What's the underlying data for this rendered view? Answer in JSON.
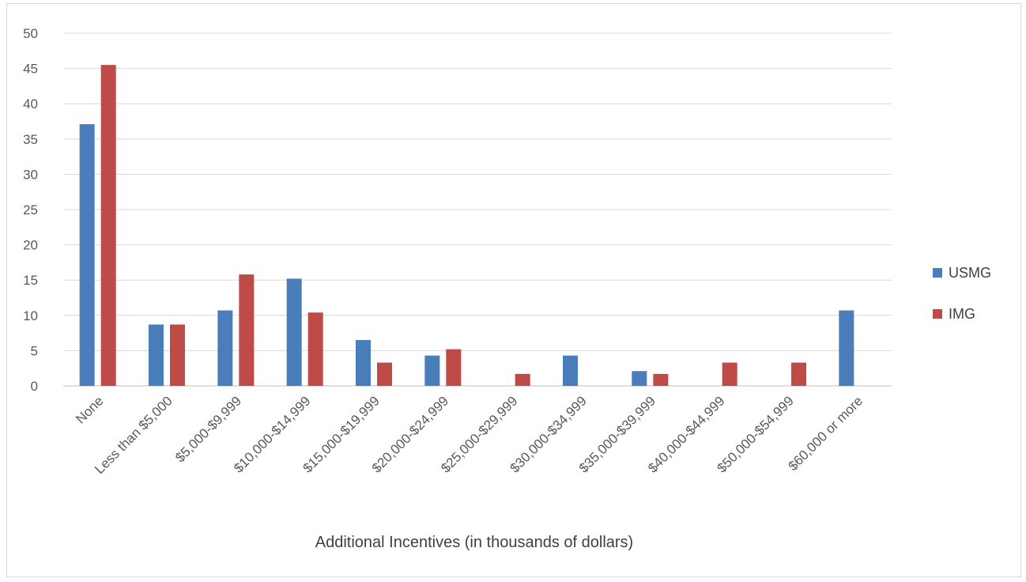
{
  "chart_data": {
    "type": "bar",
    "title": "",
    "xlabel": "Additional  Incentives  (in thousands  of dollars)",
    "ylabel": "",
    "ylim": [
      0,
      50
    ],
    "yticks": [
      0,
      5,
      10,
      15,
      20,
      25,
      30,
      35,
      40,
      45,
      50
    ],
    "grid": true,
    "legend_position": "right",
    "categories": [
      "None",
      "Less than $5,000",
      "$5,000-$9,999",
      "$10,000-$14,999",
      "$15,000-$19,999",
      "$20,000-$24,999",
      "$25,000-$29,999",
      "$30,000-$34,999",
      "$35,000-$39,999",
      "$40,000-$44,999",
      "$50,000-$54,999",
      "$60,000 or more"
    ],
    "series": [
      {
        "name": "USMG",
        "color": "#4a7ebb",
        "values": [
          37.1,
          8.7,
          10.7,
          15.2,
          6.5,
          4.3,
          0,
          4.3,
          2.1,
          0,
          0,
          10.7
        ]
      },
      {
        "name": "IMG",
        "color": "#be4b48",
        "values": [
          45.5,
          8.7,
          15.8,
          10.4,
          3.3,
          5.2,
          1.7,
          0,
          1.7,
          3.3,
          3.3,
          0
        ]
      }
    ]
  }
}
